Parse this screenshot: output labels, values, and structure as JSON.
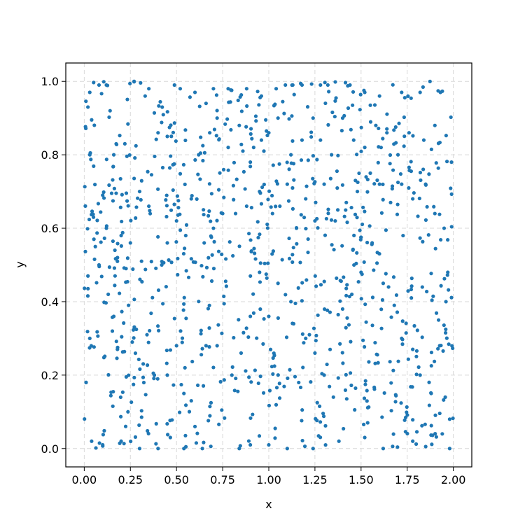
{
  "chart_data": {
    "type": "scatter",
    "title": "",
    "xlabel": "x",
    "ylabel": "y",
    "xlim": [
      -0.1,
      2.1
    ],
    "ylim": [
      -0.05,
      1.05
    ],
    "xticks": [
      0.0,
      0.25,
      0.5,
      0.75,
      1.0,
      1.25,
      1.5,
      1.75,
      2.0
    ],
    "xtick_labels": [
      "0.00",
      "0.25",
      "0.50",
      "0.75",
      "1.00",
      "1.25",
      "1.50",
      "1.75",
      "2.00"
    ],
    "yticks": [
      0.0,
      0.2,
      0.4,
      0.6,
      0.8,
      1.0
    ],
    "ytick_labels": [
      "0.0",
      "0.2",
      "0.4",
      "0.6",
      "0.8",
      "1.0"
    ],
    "grid": true,
    "point_color": "#1f77b4",
    "n_points_estimated": 1000,
    "distribution": "uniform random over x in [0, 2], y in [0, 1]",
    "points_sample": [
      [
        0.02,
        0.93
      ],
      [
        0.03,
        0.97
      ],
      [
        0.05,
        0.63
      ],
      [
        0.01,
        0.18
      ],
      [
        0.08,
        0.99
      ],
      [
        0.12,
        0.99
      ],
      [
        0.14,
        0.92
      ],
      [
        0.16,
        0.8
      ],
      [
        0.22,
        0.83
      ],
      [
        0.27,
        1.0
      ],
      [
        0.33,
        0.96
      ],
      [
        0.35,
        0.98
      ],
      [
        0.4,
        0.86
      ],
      [
        0.45,
        0.85
      ],
      [
        0.52,
        0.98
      ],
      [
        0.6,
        0.97
      ],
      [
        0.66,
        0.94
      ],
      [
        0.7,
        0.98
      ],
      [
        0.78,
        0.98
      ],
      [
        0.88,
        0.98
      ],
      [
        0.96,
        0.96
      ],
      [
        1.04,
        0.98
      ],
      [
        1.09,
        0.99
      ],
      [
        1.13,
        0.99
      ],
      [
        1.18,
        0.99
      ],
      [
        1.28,
        0.99
      ],
      [
        1.32,
        0.99
      ],
      [
        1.44,
        0.99
      ],
      [
        1.52,
        0.97
      ],
      [
        1.6,
        0.96
      ],
      [
        1.72,
        0.97
      ],
      [
        1.82,
        0.97
      ],
      [
        1.93,
        0.97
      ],
      [
        1.99,
        0.78
      ],
      [
        1.97,
        0.48
      ],
      [
        1.98,
        0.08
      ],
      [
        1.98,
        0.0
      ],
      [
        1.94,
        0.04
      ],
      [
        1.78,
        0.02
      ],
      [
        1.62,
        0.0
      ],
      [
        1.52,
        0.03
      ],
      [
        1.38,
        0.02
      ],
      [
        1.24,
        0.0
      ],
      [
        1.1,
        0.0
      ],
      [
        1.0,
        0.01
      ],
      [
        0.9,
        0.01
      ],
      [
        0.84,
        0.0
      ],
      [
        0.64,
        0.0
      ],
      [
        0.54,
        0.0
      ],
      [
        0.4,
        0.0
      ],
      [
        0.3,
        0.0
      ],
      [
        0.2,
        0.02
      ],
      [
        0.1,
        0.01
      ],
      [
        0.04,
        0.02
      ],
      [
        0.01,
        0.18
      ],
      [
        0.03,
        0.3
      ],
      [
        0.02,
        0.47
      ],
      [
        0.03,
        0.8
      ],
      [
        0.1,
        0.69
      ],
      [
        0.13,
        0.42
      ],
      [
        0.16,
        0.36
      ],
      [
        0.24,
        0.39
      ],
      [
        0.26,
        0.29
      ],
      [
        0.34,
        0.31
      ],
      [
        0.38,
        0.2
      ],
      [
        0.45,
        0.2
      ],
      [
        0.5,
        0.28
      ],
      [
        0.54,
        0.15
      ],
      [
        0.58,
        0.13
      ],
      [
        0.6,
        0.06
      ],
      [
        0.66,
        0.28
      ],
      [
        0.72,
        0.28
      ],
      [
        0.8,
        0.2
      ],
      [
        0.85,
        0.26
      ],
      [
        0.9,
        0.36
      ],
      [
        0.95,
        0.48
      ],
      [
        1.0,
        0.36
      ],
      [
        1.05,
        0.45
      ],
      [
        1.12,
        0.4
      ],
      [
        1.2,
        0.3
      ],
      [
        1.22,
        0.31
      ],
      [
        1.25,
        0.26
      ],
      [
        1.3,
        0.2
      ],
      [
        1.35,
        0.14
      ],
      [
        1.4,
        0.38
      ],
      [
        1.45,
        0.42
      ],
      [
        1.5,
        0.48
      ],
      [
        1.56,
        0.56
      ],
      [
        1.62,
        0.45
      ],
      [
        1.68,
        0.39
      ],
      [
        1.72,
        0.3
      ],
      [
        1.78,
        0.27
      ],
      [
        1.82,
        0.2
      ],
      [
        1.88,
        0.15
      ],
      [
        1.92,
        0.35
      ],
      [
        1.96,
        0.4
      ],
      [
        0.65,
        0.56
      ],
      [
        0.7,
        0.6
      ],
      [
        0.75,
        0.64
      ],
      [
        0.82,
        0.64
      ],
      [
        0.88,
        0.66
      ],
      [
        0.95,
        0.7
      ],
      [
        1.02,
        0.64
      ],
      [
        1.06,
        0.66
      ],
      [
        1.1,
        0.72
      ],
      [
        1.15,
        0.6
      ],
      [
        1.2,
        0.68
      ],
      [
        1.25,
        0.62
      ],
      [
        1.3,
        0.72
      ],
      [
        1.36,
        0.62
      ],
      [
        1.42,
        0.67
      ],
      [
        1.48,
        0.7
      ],
      [
        1.55,
        0.75
      ],
      [
        1.6,
        0.72
      ],
      [
        1.66,
        0.67
      ],
      [
        1.72,
        0.72
      ],
      [
        1.78,
        0.68
      ],
      [
        1.85,
        0.72
      ],
      [
        1.9,
        0.64
      ],
      [
        1.95,
        0.6
      ],
      [
        0.2,
        0.58
      ],
      [
        0.25,
        0.56
      ],
      [
        0.3,
        0.7
      ],
      [
        0.35,
        0.66
      ],
      [
        0.42,
        0.5
      ],
      [
        0.45,
        0.56
      ],
      [
        0.5,
        0.62
      ],
      [
        0.55,
        0.58
      ],
      [
        0.58,
        0.68
      ],
      [
        0.62,
        0.8
      ],
      [
        0.68,
        0.86
      ],
      [
        0.72,
        0.9
      ],
      [
        0.78,
        0.82
      ],
      [
        0.84,
        0.88
      ],
      [
        0.9,
        0.78
      ],
      [
        0.96,
        0.84
      ],
      [
        1.0,
        0.86
      ],
      [
        1.05,
        0.9
      ],
      [
        1.12,
        0.8
      ],
      [
        1.18,
        0.84
      ],
      [
        1.24,
        0.9
      ],
      [
        1.28,
        0.84
      ],
      [
        1.34,
        0.8
      ],
      [
        1.4,
        0.9
      ],
      [
        1.46,
        0.84
      ],
      [
        1.52,
        0.82
      ],
      [
        1.58,
        0.88
      ],
      [
        1.64,
        0.86
      ],
      [
        1.7,
        0.8
      ],
      [
        1.76,
        0.86
      ],
      [
        1.84,
        0.84
      ],
      [
        1.9,
        0.88
      ],
      [
        0.06,
        0.55
      ],
      [
        0.08,
        0.5
      ],
      [
        0.12,
        0.6
      ],
      [
        0.18,
        0.52
      ]
    ]
  }
}
